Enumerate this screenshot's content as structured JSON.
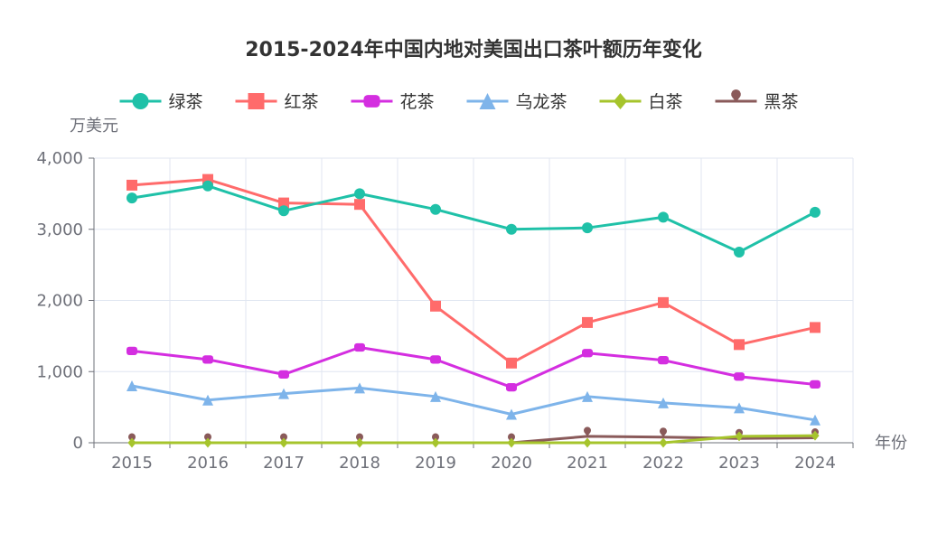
{
  "chart_data": {
    "type": "line",
    "title": "2015-2024年中国内地对美国出口茶叶额历年变化",
    "ylabel": "万美元",
    "xlabel": "年份",
    "ylim": [
      0,
      4000
    ],
    "yticks": [
      "0",
      "1,000",
      "2,000",
      "3,000",
      "4,000"
    ],
    "categories": [
      "2015",
      "2016",
      "2017",
      "2018",
      "2019",
      "2020",
      "2021",
      "2022",
      "2023",
      "2024"
    ],
    "legend_position": "top-center",
    "grid": true,
    "series": [
      {
        "name": "绿茶",
        "color": "#1fc1a8",
        "symbol": "circle",
        "values": [
          3440,
          3610,
          3260,
          3500,
          3280,
          3000,
          3020,
          3170,
          2680,
          3240
        ]
      },
      {
        "name": "红茶",
        "color": "#ff6b6b",
        "symbol": "square",
        "values": [
          3620,
          3700,
          3370,
          3350,
          1920,
          1120,
          1690,
          1970,
          1380,
          1620
        ]
      },
      {
        "name": "花茶",
        "color": "#d42ee0",
        "symbol": "roundRect",
        "values": [
          1290,
          1170,
          960,
          1340,
          1170,
          780,
          1260,
          1160,
          930,
          820
        ]
      },
      {
        "name": "乌龙茶",
        "color": "#7eb4ea",
        "symbol": "triangle",
        "values": [
          800,
          600,
          690,
          770,
          650,
          400,
          650,
          560,
          490,
          320
        ]
      },
      {
        "name": "白茶",
        "color": "#a6c42c",
        "symbol": "diamond",
        "values": [
          0,
          0,
          0,
          0,
          0,
          0,
          0,
          0,
          90,
          100
        ]
      },
      {
        "name": "黑茶",
        "color": "#8a5a5a",
        "symbol": "pin",
        "values": [
          0,
          0,
          0,
          0,
          0,
          0,
          90,
          80,
          60,
          70
        ]
      }
    ]
  }
}
